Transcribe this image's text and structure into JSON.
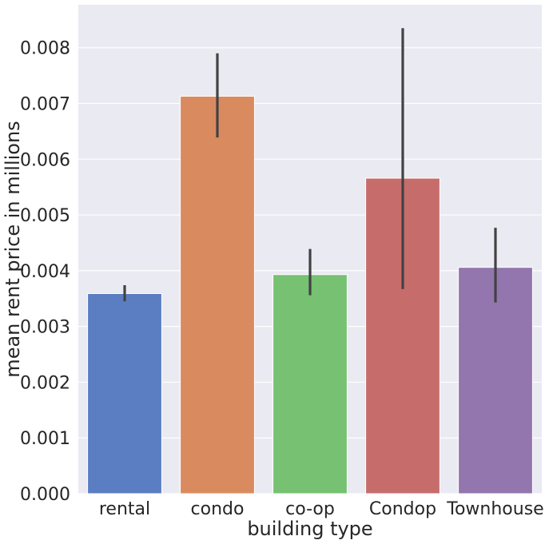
{
  "chart_data": {
    "type": "bar",
    "title": "",
    "xlabel": "building type",
    "ylabel": "mean rent price in millions",
    "categories": [
      "rental",
      "condo",
      "co-op",
      "Condop",
      "Townhouse"
    ],
    "values": [
      0.00359,
      0.00713,
      0.00393,
      0.00566,
      0.00406
    ],
    "error_low": [
      0.00345,
      0.00639,
      0.00356,
      0.00367,
      0.00343
    ],
    "error_high": [
      0.00374,
      0.0079,
      0.00439,
      0.00835,
      0.00477
    ],
    "colors": [
      "#5b7ec2",
      "#d98b5f",
      "#76c172",
      "#c66d6c",
      "#9476ae"
    ],
    "ylim": [
      0,
      0.00877
    ],
    "yticks": [
      "0.000",
      "0.001",
      "0.002",
      "0.003",
      "0.004",
      "0.005",
      "0.006",
      "0.007",
      "0.008"
    ],
    "grid": true,
    "background": "#eaeaf2"
  }
}
